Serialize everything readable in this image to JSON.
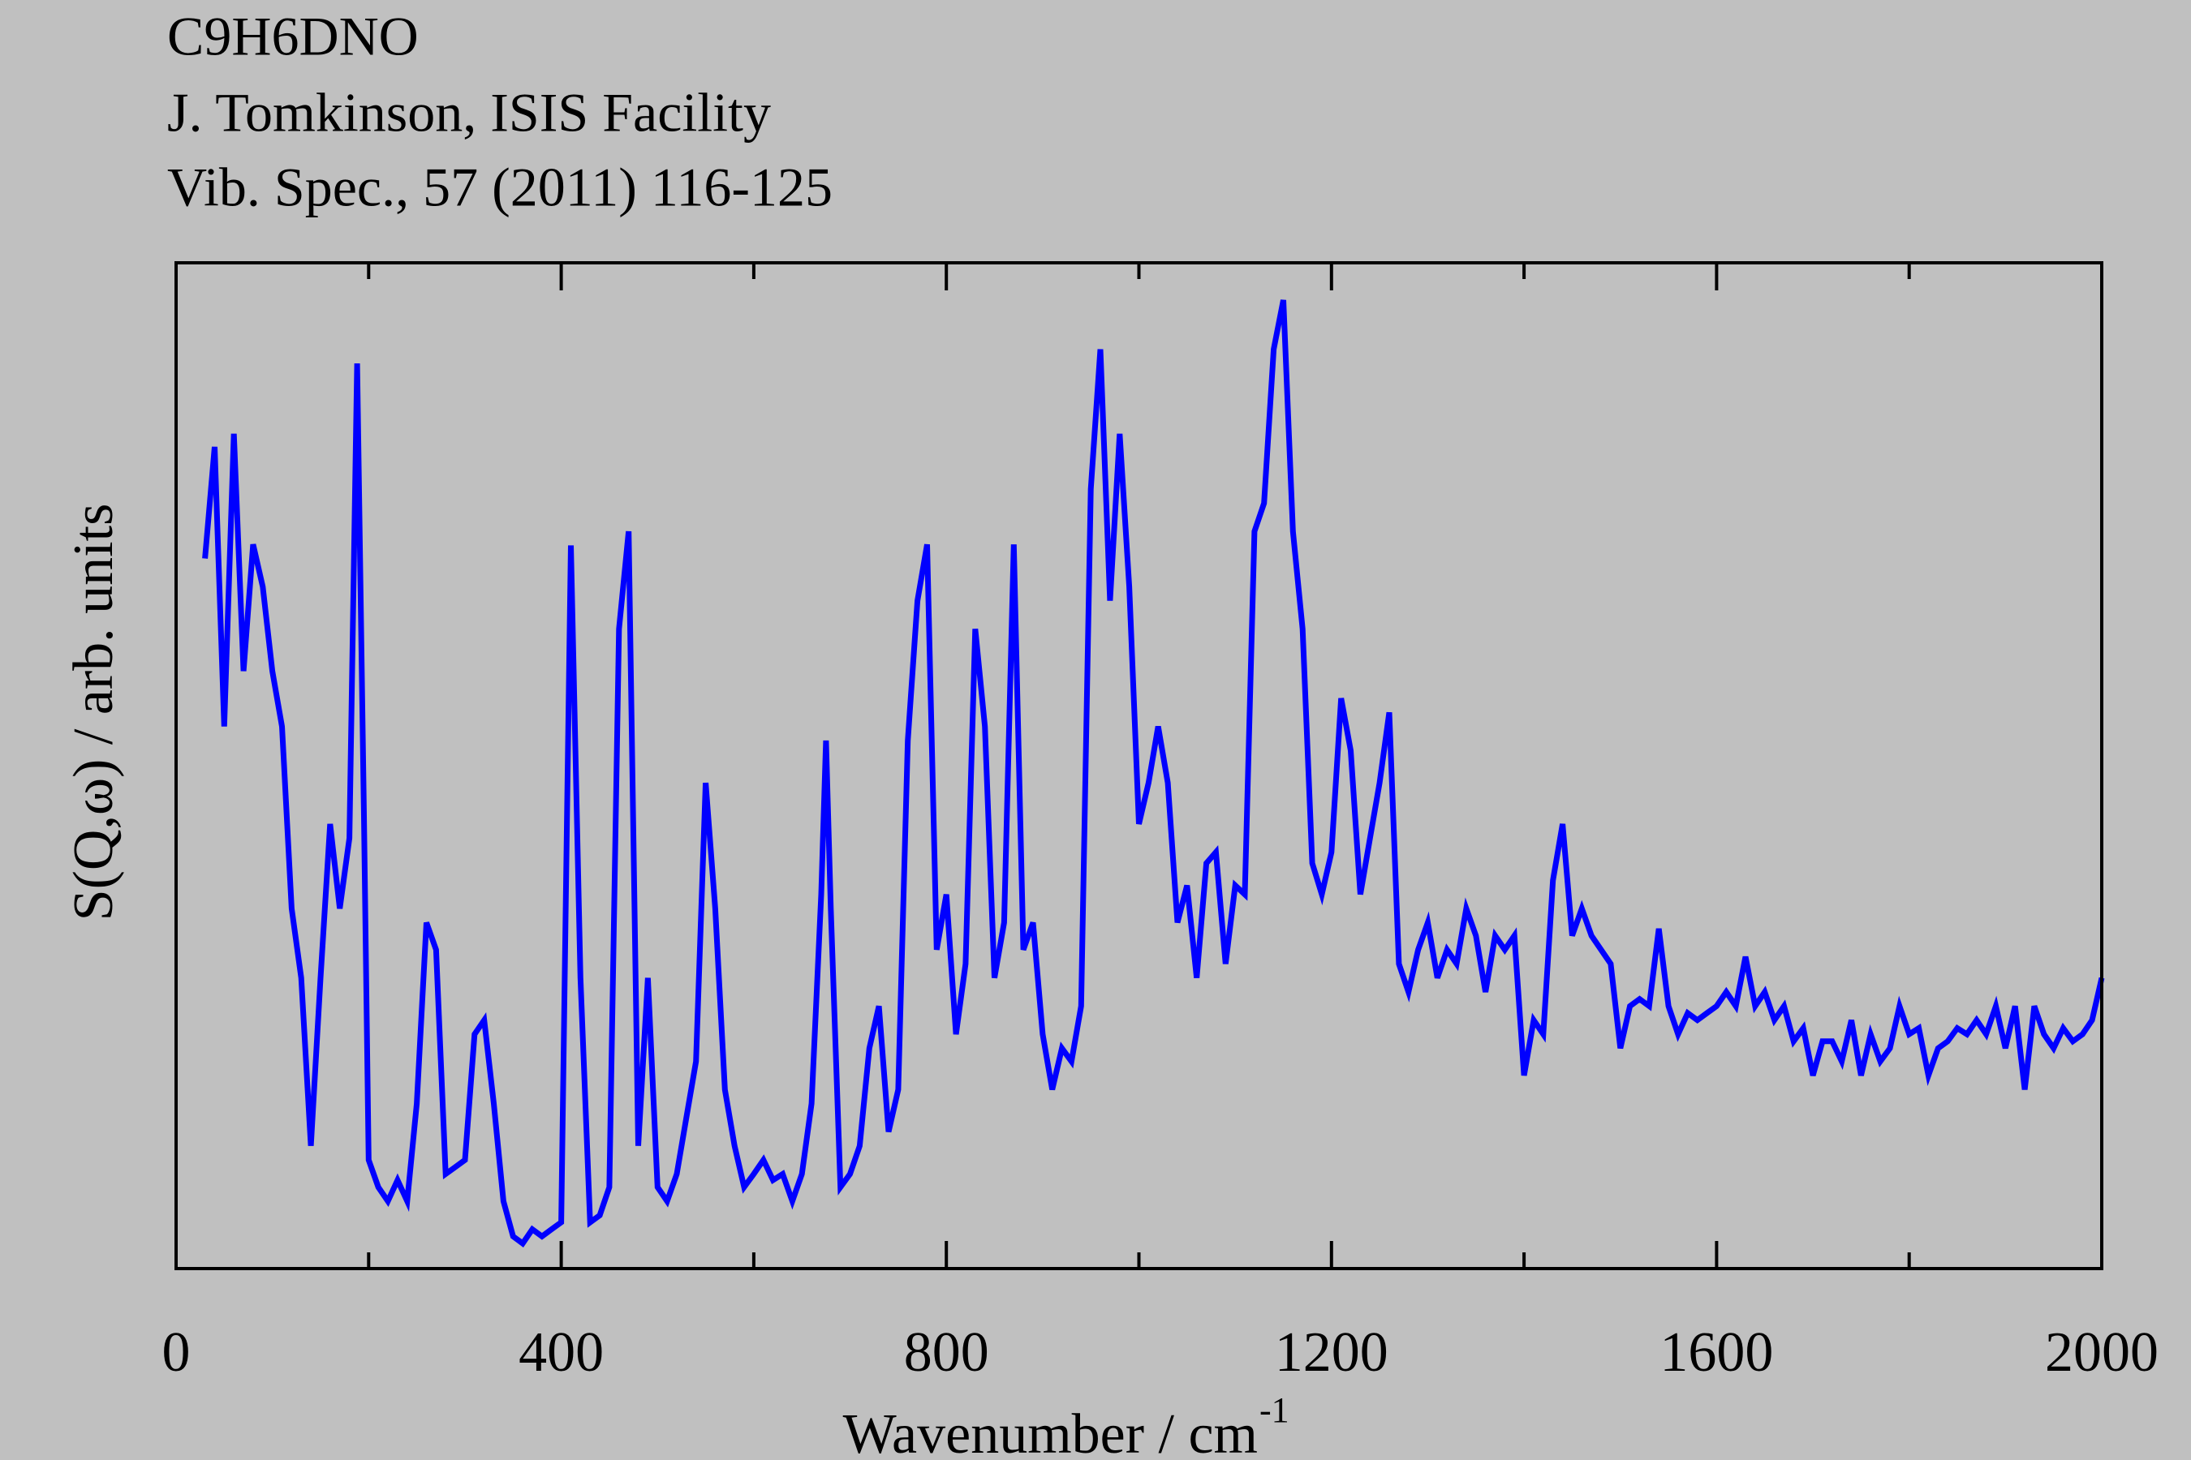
{
  "chart_data": {
    "type": "line",
    "title": "C9H6DNO",
    "subtitle": [
      "J. Tomkinson, ISIS Facility",
      "Vib. Spec., 57 (2011) 116-125"
    ],
    "x_label": "Wavenumber / cm",
    "x_label_superscript": "-1",
    "y_label": "S(Q,ω) / arb. units",
    "xlim": [
      0,
      2000
    ],
    "ylim": [
      0,
      100
    ],
    "xticks": [
      0,
      400,
      800,
      1200,
      1600,
      2000
    ],
    "xminorticks": [
      200,
      600,
      1000,
      1400,
      1800
    ],
    "x": [
      30,
      40,
      50,
      60,
      70,
      80,
      90,
      100,
      110,
      120,
      130,
      140,
      150,
      160,
      170,
      180,
      188,
      195,
      200,
      210,
      220,
      230,
      240,
      250,
      260,
      270,
      280,
      290,
      300,
      310,
      320,
      330,
      340,
      350,
      360,
      370,
      380,
      390,
      400,
      410,
      420,
      430,
      440,
      450,
      460,
      470,
      480,
      490,
      500,
      510,
      520,
      530,
      540,
      550,
      560,
      570,
      580,
      590,
      600,
      610,
      620,
      630,
      640,
      650,
      660,
      670,
      675,
      680,
      690,
      700,
      710,
      720,
      730,
      740,
      750,
      760,
      770,
      780,
      790,
      800,
      810,
      820,
      830,
      840,
      850,
      860,
      870,
      880,
      890,
      900,
      910,
      920,
      930,
      940,
      950,
      960,
      970,
      980,
      990,
      1000,
      1010,
      1020,
      1030,
      1040,
      1050,
      1060,
      1070,
      1080,
      1090,
      1100,
      1110,
      1120,
      1130,
      1140,
      1150,
      1160,
      1170,
      1180,
      1190,
      1200,
      1210,
      1220,
      1230,
      1240,
      1250,
      1260,
      1270,
      1280,
      1290,
      1300,
      1310,
      1320,
      1330,
      1340,
      1350,
      1360,
      1370,
      1380,
      1390,
      1400,
      1410,
      1420,
      1430,
      1440,
      1450,
      1460,
      1470,
      1480,
      1490,
      1500,
      1510,
      1520,
      1530,
      1540,
      1550,
      1560,
      1570,
      1580,
      1590,
      1600,
      1610,
      1620,
      1630,
      1640,
      1650,
      1660,
      1670,
      1680,
      1690,
      1700,
      1710,
      1720,
      1730,
      1740,
      1750,
      1760,
      1770,
      1780,
      1790,
      1800,
      1810,
      1820,
      1830,
      1840,
      1850,
      1860,
      1870,
      1880,
      1890,
      1900,
      1910,
      1920,
      1930,
      1940,
      1950,
      1960,
      1970,
      1980,
      1990,
      2000
    ],
    "series": [
      {
        "color": "#0000ff",
        "values": [
          70.6,
          81.7,
          53.9,
          83,
          59.4,
          72,
          67.8,
          59.4,
          53.9,
          35.8,
          28.9,
          12.2,
          28.9,
          44.2,
          35.8,
          42.8,
          90,
          45.6,
          10.8,
          8.1,
          6.7,
          8.8,
          6.7,
          16.4,
          34.4,
          31.7,
          9.4,
          10.1,
          10.8,
          23.3,
          24.7,
          16.4,
          6.7,
          3.2,
          2.5,
          3.9,
          3.2,
          3.9,
          4.6,
          71.9,
          28.9,
          4.6,
          5.3,
          8.1,
          63.6,
          73.3,
          12.2,
          28.9,
          8.1,
          6.7,
          9.4,
          15,
          20.6,
          48.3,
          35.8,
          17.8,
          12.2,
          8.1,
          9.4,
          10.8,
          8.8,
          9.4,
          6.7,
          9.4,
          16.4,
          37.2,
          52.5,
          35.8,
          8.1,
          9.4,
          12.2,
          21.9,
          26.1,
          13.6,
          17.8,
          52.5,
          66.4,
          72,
          31.7,
          37.2,
          23.3,
          30.3,
          63.6,
          53.9,
          28.9,
          34.4,
          72,
          31.7,
          34.4,
          23.3,
          17.8,
          21.9,
          20.6,
          26.1,
          77.5,
          91.4,
          66.4,
          83,
          67.8,
          44.2,
          48.3,
          53.9,
          48.3,
          34.4,
          38.1,
          28.9,
          40.3,
          41.4,
          30.3,
          38.1,
          37.2,
          73.3,
          76.1,
          91.4,
          96.3,
          73.3,
          63.6,
          40.3,
          37.2,
          41.4,
          56.7,
          51.5,
          37.2,
          42.8,
          48.3,
          55.3,
          30.3,
          27.5,
          31.7,
          34.4,
          28.9,
          31.7,
          30.3,
          35.8,
          33.1,
          27.5,
          33.1,
          31.7,
          33.1,
          19.2,
          24.7,
          23.3,
          38.6,
          44.2,
          33.1,
          35.8,
          33.1,
          31.7,
          30.3,
          21.9,
          26.1,
          26.8,
          26.1,
          33.8,
          26.1,
          23.3,
          25.4,
          24.7,
          25.4,
          26.1,
          27.5,
          26.1,
          31,
          26.1,
          27.5,
          24.7,
          26.1,
          22.6,
          23.9,
          19.2,
          22.6,
          22.6,
          20.6,
          24.7,
          19.2,
          23.3,
          20.6,
          21.9,
          26.1,
          23.3,
          23.9,
          19.2,
          21.9,
          22.6,
          23.9,
          23.3,
          24.7,
          23.3,
          26.1,
          21.9,
          26.1,
          17.8,
          26.1,
          23.3,
          21.9,
          23.9,
          22.6,
          23.3,
          24.7,
          28.9
        ]
      }
    ]
  }
}
